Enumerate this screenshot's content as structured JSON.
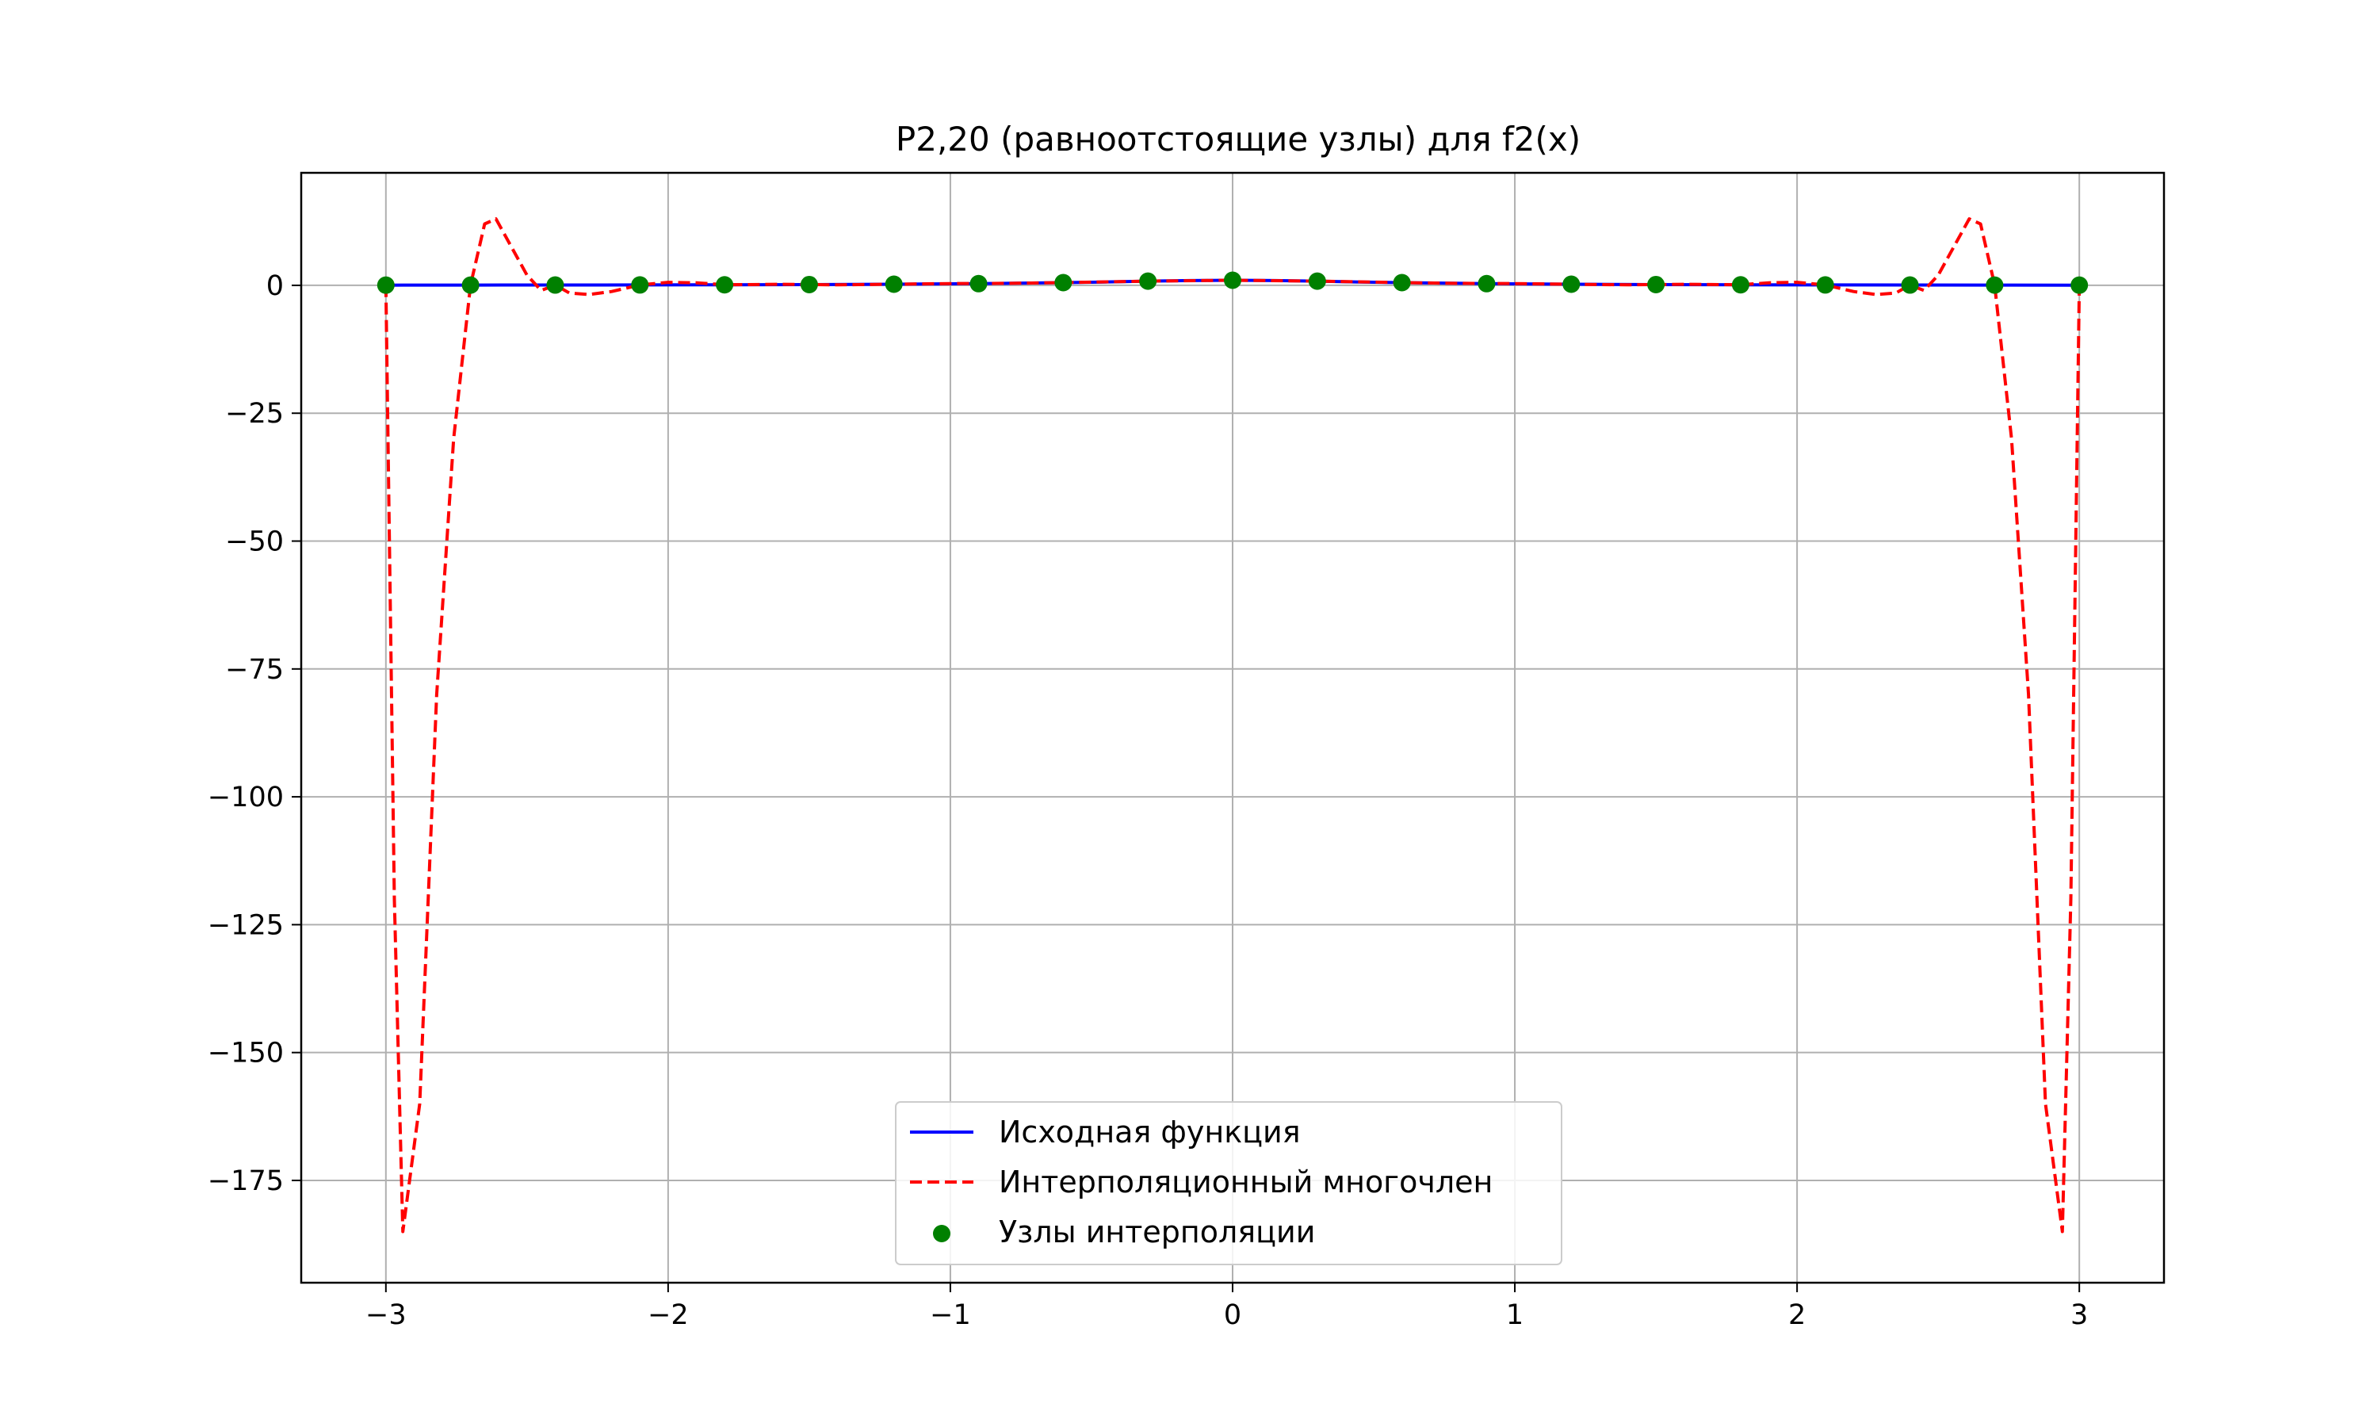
{
  "chart_data": {
    "type": "line",
    "title": "P2,20 (равноотстоящие узлы) для f2(x)",
    "xlabel": "",
    "ylabel": "",
    "xlim": [
      -3.3,
      3.3
    ],
    "ylim": [
      -195,
      22
    ],
    "grid": true,
    "legend_position": "bottom-center",
    "x_ticks": [
      -3,
      -2,
      -1,
      0,
      1,
      2,
      3
    ],
    "x_tick_labels": [
      "−3",
      "−2",
      "−1",
      "0",
      "1",
      "2",
      "3"
    ],
    "y_ticks": [
      0,
      -25,
      -50,
      -75,
      -100,
      -125,
      -150,
      -175
    ],
    "y_tick_labels": [
      "0",
      "−25",
      "−50",
      "−75",
      "−100",
      "−125",
      "−150",
      "−175"
    ],
    "series": [
      {
        "name": "Исходная функция",
        "kind": "line",
        "style": "solid",
        "color": "#0000ff",
        "x": [
          -3.0,
          -2.7,
          -2.4,
          -2.1,
          -1.8,
          -1.5,
          -1.2,
          -0.9,
          -0.6,
          -0.45,
          -0.3,
          -0.15,
          0.0,
          0.15,
          0.3,
          0.45,
          0.6,
          0.9,
          1.2,
          1.5,
          1.8,
          2.1,
          2.4,
          2.7,
          3.0
        ],
        "y": [
          0.04,
          0.05,
          0.06,
          0.08,
          0.11,
          0.15,
          0.22,
          0.33,
          0.53,
          0.66,
          0.82,
          0.94,
          1.0,
          0.94,
          0.82,
          0.66,
          0.53,
          0.33,
          0.22,
          0.15,
          0.11,
          0.08,
          0.06,
          0.05,
          0.04
        ]
      },
      {
        "name": "Интерполяционный многочлен",
        "kind": "line",
        "style": "dashed",
        "color": "#ff0000",
        "x": [
          -3.0,
          -2.97,
          -2.94,
          -2.88,
          -2.82,
          -2.76,
          -2.7,
          -2.65,
          -2.61,
          -2.57,
          -2.5,
          -2.45,
          -2.4,
          -2.35,
          -2.28,
          -2.2,
          -2.1,
          -2.0,
          -1.9,
          -1.8,
          -1.6,
          -1.4,
          -1.2,
          -1.0,
          -0.8,
          -0.6,
          -0.3,
          0.0,
          0.3,
          0.6,
          0.8,
          1.0,
          1.2,
          1.4,
          1.6,
          1.8,
          1.9,
          2.0,
          2.1,
          2.2,
          2.28,
          2.35,
          2.4,
          2.45,
          2.5,
          2.57,
          2.61,
          2.65,
          2.7,
          2.76,
          2.82,
          2.88,
          2.94,
          2.97,
          3.0
        ],
        "y": [
          0.04,
          -120,
          -185,
          -160,
          -80,
          -30,
          0.05,
          12,
          13,
          9,
          2,
          -1,
          0.06,
          -1.5,
          -1.8,
          -1.2,
          0.08,
          0.6,
          0.5,
          0.11,
          0.2,
          0.1,
          0.22,
          0.35,
          0.4,
          0.53,
          0.82,
          1.0,
          0.82,
          0.53,
          0.4,
          0.35,
          0.22,
          0.1,
          0.2,
          0.11,
          0.5,
          0.6,
          0.08,
          -1.2,
          -1.8,
          -1.5,
          0.06,
          -1,
          2,
          9,
          13,
          12,
          0.05,
          -30,
          -80,
          -160,
          -185,
          -120,
          0.04
        ]
      },
      {
        "name": "Узлы интерполяции",
        "kind": "scatter",
        "color": "#008000",
        "x": [
          -3.0,
          -2.7,
          -2.4,
          -2.1,
          -1.8,
          -1.5,
          -1.2,
          -0.9,
          -0.6,
          -0.3,
          0.0,
          0.3,
          0.6,
          0.9,
          1.2,
          1.5,
          1.8,
          2.1,
          2.4,
          2.7,
          3.0
        ],
        "y": [
          0.04,
          0.05,
          0.06,
          0.08,
          0.11,
          0.15,
          0.22,
          0.33,
          0.53,
          0.82,
          1.0,
          0.82,
          0.53,
          0.33,
          0.22,
          0.15,
          0.11,
          0.08,
          0.06,
          0.05,
          0.04
        ]
      }
    ]
  }
}
